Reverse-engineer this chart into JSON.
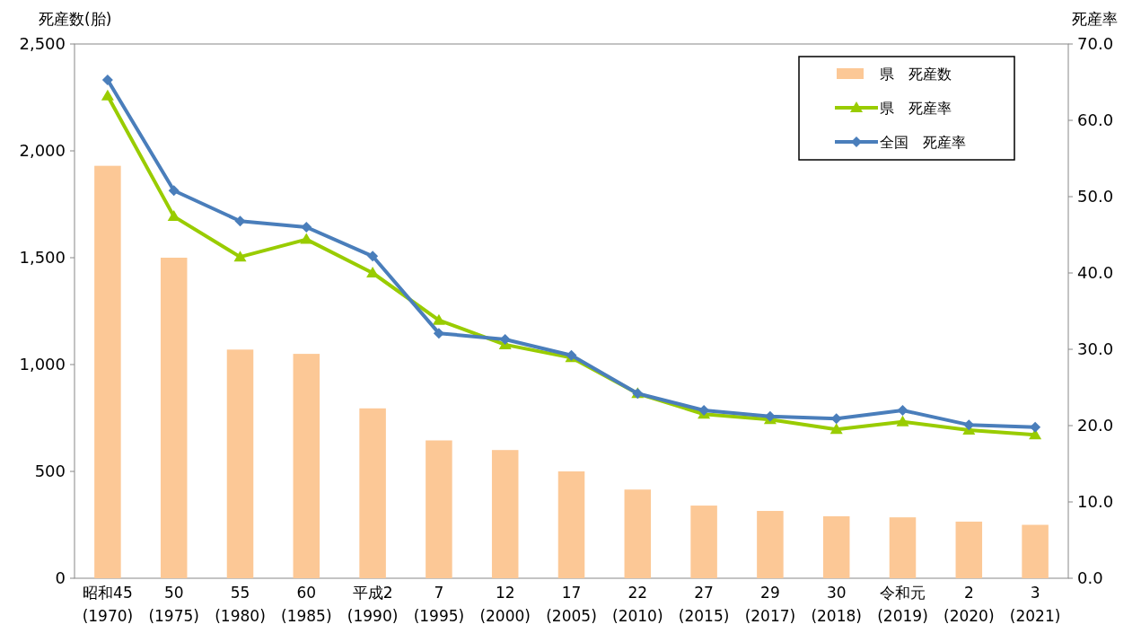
{
  "chart_data": {
    "type": "bar",
    "ylabel": "死産数(胎)",
    "y2label": "死産率",
    "categories": [
      "昭和45\n(1970)",
      "50\n(1975)",
      "55\n(1980)",
      "60\n(1985)",
      "平成2\n(1990)",
      "7\n(1995)",
      "12\n(2000)",
      "17\n(2005)",
      "22\n(2010)",
      "27\n(2015)",
      "29\n(2017)",
      "30\n(2018)",
      "令和元\n(2019)",
      "2\n(2020)",
      "3\n(2021)"
    ],
    "series": [
      {
        "name": "県　死産数",
        "color": "#fcc896",
        "values": [
          1930,
          1500,
          1070,
          1050,
          795,
          645,
          600,
          500,
          415,
          340,
          315,
          290,
          285,
          265,
          250
        ]
      },
      {
        "name": "県　死産率",
        "type": "line",
        "axis": "y2",
        "marker": "triangle",
        "color": "#99cc00",
        "values": [
          63.2,
          47.4,
          42.1,
          44.4,
          40.0,
          33.8,
          30.6,
          28.9,
          24.2,
          21.5,
          20.8,
          19.5,
          20.5,
          19.4,
          18.8
        ]
      },
      {
        "name": "全国　死産率",
        "type": "line",
        "axis": "y2",
        "marker": "diamond",
        "color": "#4a7ebb",
        "values": [
          65.3,
          50.8,
          46.8,
          46.0,
          42.2,
          32.1,
          31.3,
          29.2,
          24.2,
          22.0,
          21.2,
          20.9,
          22.0,
          20.1,
          19.8
        ]
      }
    ],
    "ylim": [
      0,
      2500
    ],
    "yticks": [
      0,
      500,
      {
        "value": 1000,
        "label": "1,000"
      },
      {
        "value": 1500,
        "label": "1,500"
      },
      {
        "value": 2000,
        "label": "2,000"
      },
      {
        "value": 2500,
        "label": "2,500"
      }
    ],
    "y2lim": [
      0,
      70
    ],
    "y2ticks": [
      {
        "value": 0,
        "label": "0.0"
      },
      {
        "value": 10,
        "label": "10.0"
      },
      {
        "value": 20,
        "label": "20.0"
      },
      {
        "value": 30,
        "label": "30.0"
      },
      {
        "value": 40,
        "label": "40.0"
      },
      {
        "value": 50,
        "label": "50.0"
      },
      {
        "value": 60,
        "label": "60.0"
      },
      {
        "value": 70,
        "label": "70.0"
      }
    ],
    "grid": false,
    "legend": "top right"
  }
}
